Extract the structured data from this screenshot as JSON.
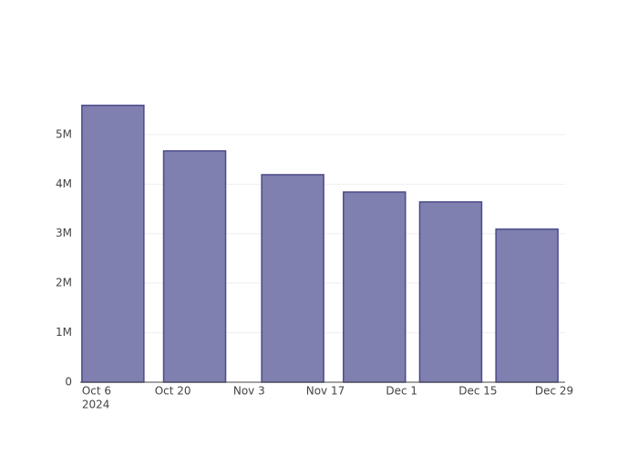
{
  "chart_data": {
    "type": "bar",
    "x": [
      "2024-10-09",
      "2024-10-24",
      "2024-11-11",
      "2024-11-26",
      "2024-12-10",
      "2024-12-24"
    ],
    "values": [
      5590000,
      4670000,
      4190000,
      3840000,
      3640000,
      3090000
    ],
    "color": "#7f7fb0",
    "edge_color": "#4b4b8a",
    "xlim": [
      "2024-10-03",
      "2024-12-31"
    ],
    "xticks": [
      {
        "value": "2024-10-06",
        "label": "Oct 6"
      },
      {
        "value": "2024-10-20",
        "label": "Oct 20"
      },
      {
        "value": "2024-11-03",
        "label": "Nov 3"
      },
      {
        "value": "2024-11-17",
        "label": "Nov 17"
      },
      {
        "value": "2024-12-01",
        "label": "Dec 1"
      },
      {
        "value": "2024-12-15",
        "label": "Dec 15"
      },
      {
        "value": "2024-12-29",
        "label": "Dec 29"
      }
    ],
    "x_year_label": "2024",
    "ylim": [
      0,
      5880000
    ],
    "yticks": [
      0,
      {
        "value": 1000000,
        "label": "1M"
      },
      {
        "value": 2000000,
        "label": "2M"
      },
      {
        "value": 3000000,
        "label": "3M"
      },
      {
        "value": 4000000,
        "label": "4M"
      },
      {
        "value": 5000000,
        "label": "5M"
      }
    ],
    "grid": true
  }
}
